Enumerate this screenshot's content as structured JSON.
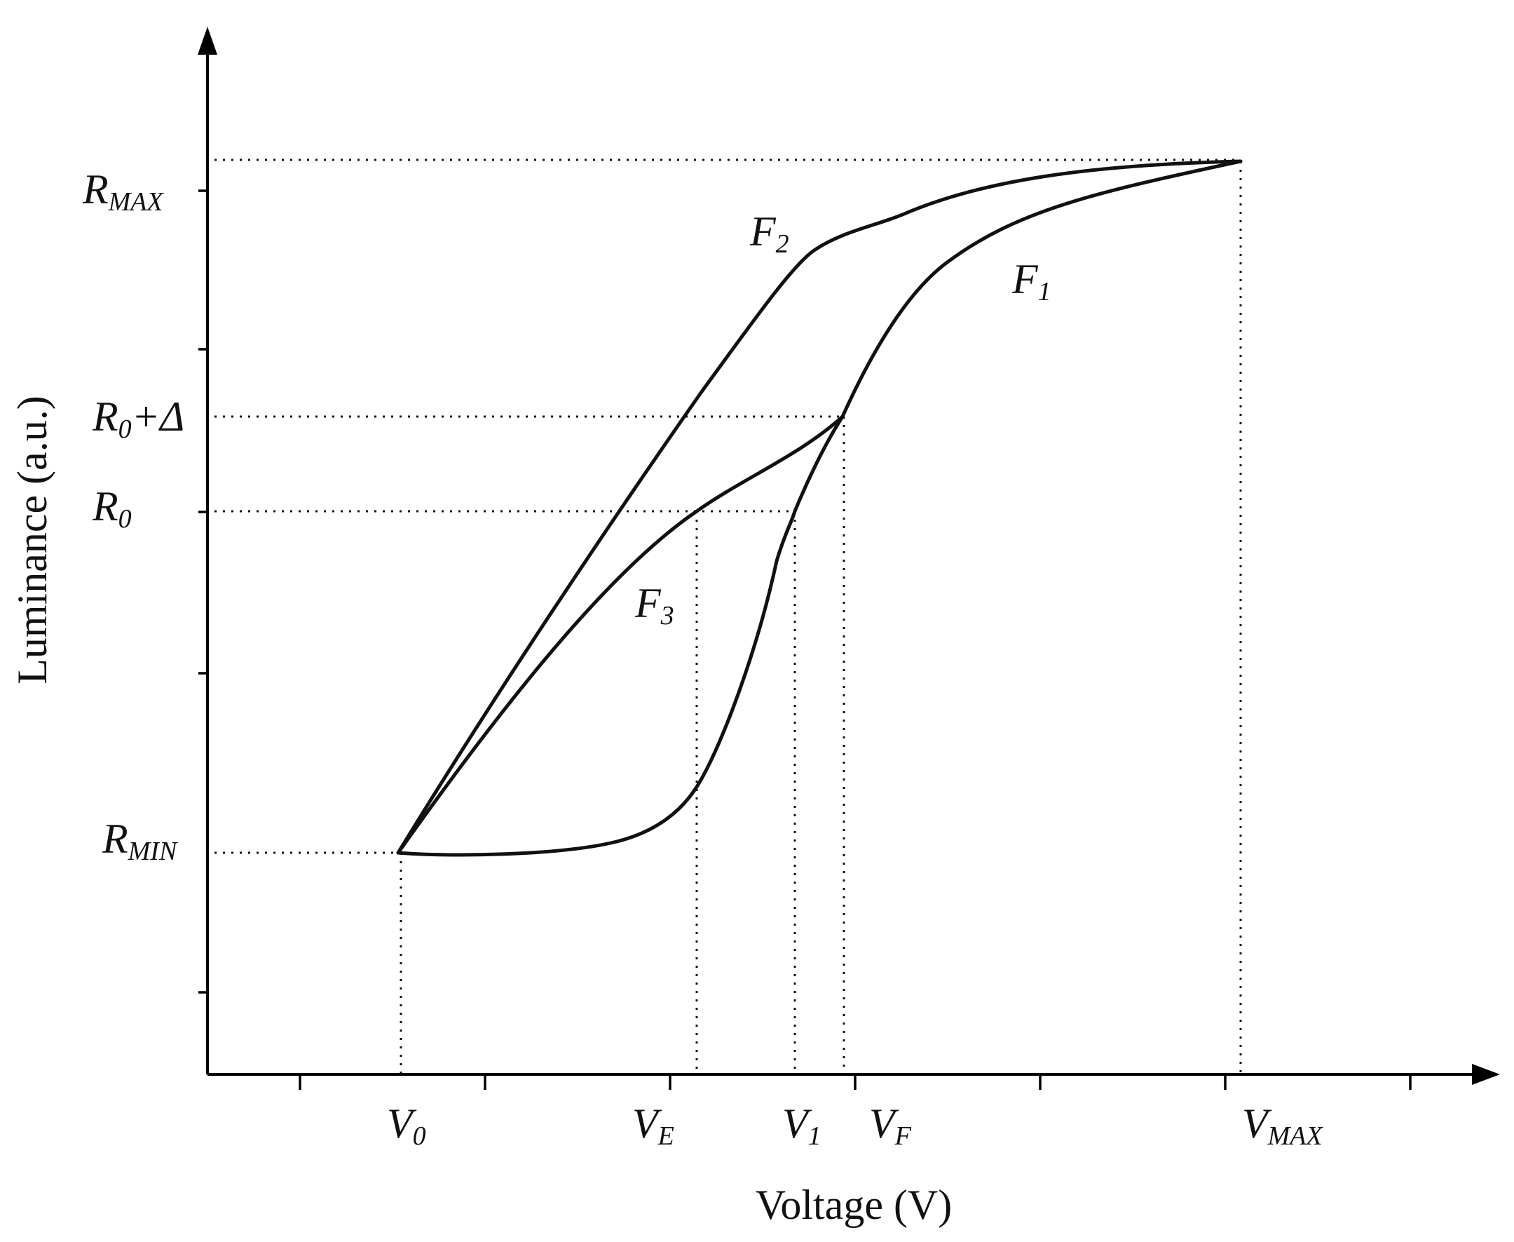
{
  "axes": {
    "x_title": "Voltage (V)",
    "y_title": "Luminance (a.u.)"
  },
  "x_labels": [
    {
      "key": "v0",
      "main": "V",
      "sub": "0"
    },
    {
      "key": "ve",
      "main": "V",
      "sub": "E"
    },
    {
      "key": "v1",
      "main": "V",
      "sub": "1"
    },
    {
      "key": "vf",
      "main": "V",
      "sub": "F"
    },
    {
      "key": "vmax",
      "main": "V",
      "sub": "MAX"
    }
  ],
  "y_labels": [
    {
      "key": "rmax",
      "main": "R",
      "sub": "MAX"
    },
    {
      "key": "r0d",
      "main": "R",
      "sub": "0",
      "suffix": "+Δ"
    },
    {
      "key": "r0",
      "main": "R",
      "sub": "0"
    },
    {
      "key": "rmin",
      "main": "R",
      "sub": "MIN"
    }
  ],
  "curves": [
    {
      "key": "f1",
      "main": "F",
      "sub": "1"
    },
    {
      "key": "f2",
      "main": "F",
      "sub": "2"
    },
    {
      "key": "f3",
      "main": "F",
      "sub": "3"
    }
  ],
  "colors": {
    "ink": "#111111",
    "background": "#ffffff"
  }
}
